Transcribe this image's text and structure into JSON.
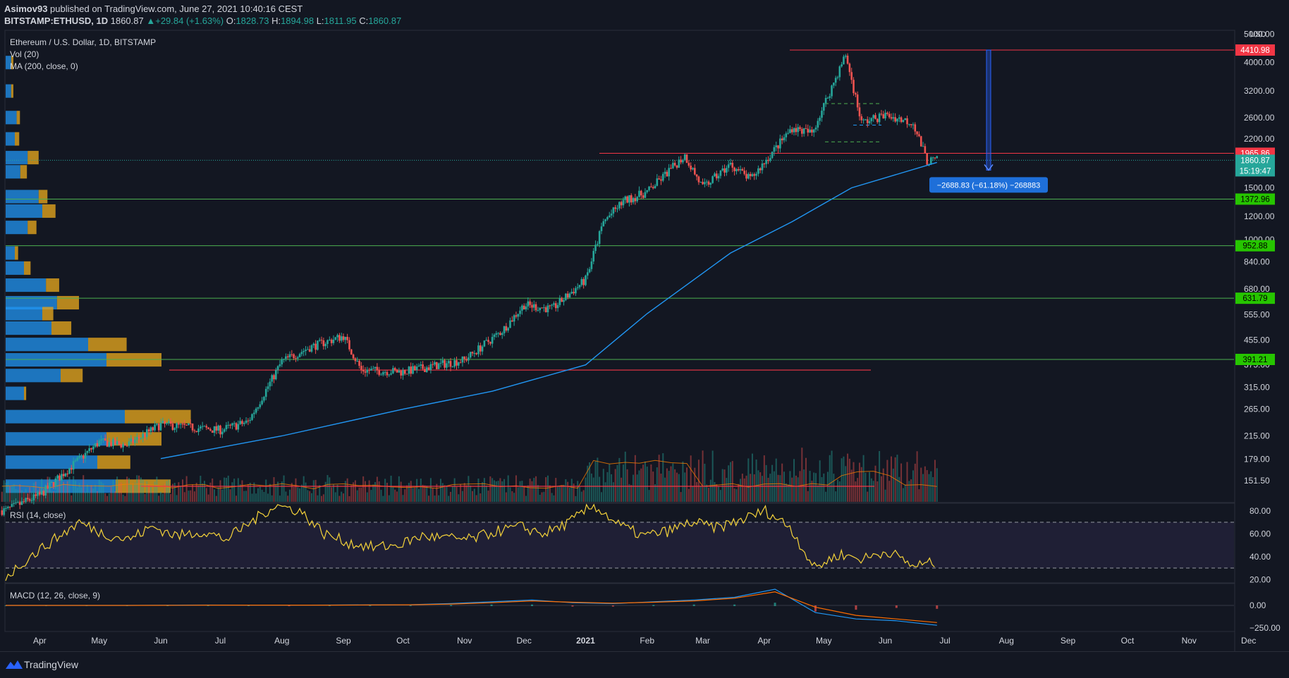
{
  "header": {
    "author": "Asimov93",
    "published": "published on TradingView.com, June 27, 2021 10:40:16 CEST",
    "symbol": "BITSTAMP:ETHUSD, 1D",
    "last": "1860.87",
    "change": "+29.84 (+1.63%)",
    "o_label": "O:",
    "o": "1828.73",
    "h_label": "H:",
    "h": "1894.98",
    "l_label": "L:",
    "l": "1811.95",
    "c_label": "C:",
    "c": "1860.87"
  },
  "legend": {
    "title": "Ethereum / U.S. Dollar, 1D, BITSTAMP",
    "vol": "Vol (20)",
    "ma": "MA (200, close, 0)",
    "rsi": "RSI (14, close)",
    "macd": "MACD (12, 26, close, 9)"
  },
  "colors": {
    "background": "#131722",
    "up": "#26a69a",
    "down": "#ef5350",
    "ma": "#2196f3",
    "rsi": "#f5d33a",
    "support": "#4caf50",
    "resistance": "#f23645",
    "measure": "#2962ff"
  },
  "footer": {
    "brand": "TradingView",
    "logo_icon": "tradingview-logo-icon"
  },
  "measure_label": "−2688.83 (−61.18%) −268883",
  "chart_data": {
    "type": "candlestick",
    "title": "Ethereum / U.S. Dollar, 1D, BITSTAMP",
    "y_scale": "log",
    "y_unit": "USD",
    "y_ticks": [
      "5000.00",
      "4000.00",
      "3200.00",
      "2600.00",
      "2200.00",
      "1500.00",
      "1200.00",
      "1000.00",
      "840.00",
      "680.00",
      "555.00",
      "455.00",
      "375.00",
      "315.00",
      "265.00",
      "215.00",
      "179.00",
      "151.50"
    ],
    "x_ticks": [
      "Apr",
      "May",
      "Jun",
      "Jul",
      "Aug",
      "Sep",
      "Oct",
      "Nov",
      "Dec",
      "2021",
      "Feb",
      "Mar",
      "Apr",
      "May",
      "Jun",
      "Jul",
      "Aug",
      "Sep",
      "Oct",
      "Nov",
      "Dec"
    ],
    "price_path": [
      {
        "x": "2020-03-15",
        "y": 120
      },
      {
        "x": "2020-04-01",
        "y": 135
      },
      {
        "x": "2020-04-15",
        "y": 165
      },
      {
        "x": "2020-05-01",
        "y": 205
      },
      {
        "x": "2020-05-15",
        "y": 200
      },
      {
        "x": "2020-06-01",
        "y": 235
      },
      {
        "x": "2020-06-15",
        "y": 230
      },
      {
        "x": "2020-07-01",
        "y": 225
      },
      {
        "x": "2020-07-15",
        "y": 240
      },
      {
        "x": "2020-08-01",
        "y": 385
      },
      {
        "x": "2020-08-15",
        "y": 430
      },
      {
        "x": "2020-09-01",
        "y": 470
      },
      {
        "x": "2020-09-10",
        "y": 360
      },
      {
        "x": "2020-10-01",
        "y": 355
      },
      {
        "x": "2020-10-15",
        "y": 370
      },
      {
        "x": "2020-11-01",
        "y": 390
      },
      {
        "x": "2020-11-20",
        "y": 490
      },
      {
        "x": "2020-12-01",
        "y": 600
      },
      {
        "x": "2020-12-15",
        "y": 580
      },
      {
        "x": "2021-01-01",
        "y": 730
      },
      {
        "x": "2021-01-10",
        "y": 1150
      },
      {
        "x": "2021-01-20",
        "y": 1350
      },
      {
        "x": "2021-02-01",
        "y": 1450
      },
      {
        "x": "2021-02-20",
        "y": 1930
      },
      {
        "x": "2021-03-01",
        "y": 1500
      },
      {
        "x": "2021-03-15",
        "y": 1800
      },
      {
        "x": "2021-03-25",
        "y": 1600
      },
      {
        "x": "2021-04-15",
        "y": 2400
      },
      {
        "x": "2021-04-25",
        "y": 2300
      },
      {
        "x": "2021-05-12",
        "y": 4250
      },
      {
        "x": "2021-05-20",
        "y": 2500
      },
      {
        "x": "2021-06-01",
        "y": 2650
      },
      {
        "x": "2021-06-15",
        "y": 2500
      },
      {
        "x": "2021-06-22",
        "y": 1850
      },
      {
        "x": "2021-06-27",
        "y": 1860.87
      }
    ],
    "ma200": [
      {
        "x": "2020-06-01",
        "y": 180
      },
      {
        "x": "2020-08-01",
        "y": 215
      },
      {
        "x": "2020-10-01",
        "y": 265
      },
      {
        "x": "2020-11-15",
        "y": 305
      },
      {
        "x": "2021-01-01",
        "y": 375
      },
      {
        "x": "2021-02-01",
        "y": 560
      },
      {
        "x": "2021-03-15",
        "y": 900
      },
      {
        "x": "2021-04-15",
        "y": 1150
      },
      {
        "x": "2021-05-15",
        "y": 1500
      },
      {
        "x": "2021-06-27",
        "y": 1830
      }
    ],
    "support_levels": [
      1372.96,
      952.88,
      631.79,
      391.21
    ],
    "resistance_levels": [
      4410.98,
      1965.86
    ],
    "other_red_levels": [
      360
    ],
    "range_box": {
      "top": 2900,
      "mid": 2450,
      "bottom": 2150
    },
    "price_labels": [
      {
        "value": "4410.98",
        "kind": "resistance"
      },
      {
        "value": "1965.86",
        "kind": "resistance"
      },
      {
        "value": "1860.87",
        "kind": "last"
      },
      {
        "value": "15:19:47",
        "kind": "countdown"
      },
      {
        "value": "1372.96",
        "kind": "support"
      },
      {
        "value": "952.88",
        "kind": "support"
      },
      {
        "value": "631.79",
        "kind": "support"
      },
      {
        "value": "391.21",
        "kind": "support"
      }
    ],
    "measurement": {
      "from": 4410.98,
      "to": 1722.15,
      "change": "−2688.83 (−61.18%) −268883"
    },
    "rsi": {
      "levels": [
        70,
        30
      ],
      "ticks": [
        "80.00",
        "60.00",
        "40.00",
        "20.00"
      ],
      "path": [
        22,
        40,
        55,
        70,
        60,
        55,
        66,
        58,
        62,
        55,
        70,
        85,
        80,
        60,
        52,
        48,
        50,
        58,
        56,
        55,
        62,
        66,
        60,
        70,
        85,
        68,
        58,
        62,
        70,
        65,
        72,
        80,
        66,
        30,
        42,
        38,
        45,
        32,
        35
      ]
    },
    "macd": {
      "ticks": [
        "0.00",
        "−250.00"
      ],
      "macd_path": [
        0,
        0,
        0,
        0,
        2,
        4,
        3,
        2,
        4,
        6,
        8,
        20,
        40,
        60,
        30,
        20,
        40,
        60,
        90,
        180,
        -80,
        -150,
        -170,
        -220
      ],
      "signal_path": [
        0,
        0,
        0,
        0,
        1,
        3,
        3,
        3,
        3,
        5,
        7,
        15,
        30,
        50,
        35,
        25,
        35,
        50,
        80,
        150,
        -20,
        -110,
        -150,
        -190
      ]
    },
    "volume_profile": [
      {
        "price": 4000,
        "up": 0.03,
        "down": 0.02
      },
      {
        "price": 3200,
        "up": 0.03,
        "down": 0.02
      },
      {
        "price": 2600,
        "up": 0.06,
        "down": 0.03
      },
      {
        "price": 2200,
        "up": 0.05,
        "down": 0.04
      },
      {
        "price": 1900,
        "up": 0.12,
        "down": 0.1
      },
      {
        "price": 1700,
        "up": 0.08,
        "down": 0.06
      },
      {
        "price": 1400,
        "up": 0.18,
        "down": 0.08
      },
      {
        "price": 1250,
        "up": 0.2,
        "down": 0.12
      },
      {
        "price": 1100,
        "up": 0.12,
        "down": 0.08
      },
      {
        "price": 900,
        "up": 0.05,
        "down": 0.03
      },
      {
        "price": 800,
        "up": 0.1,
        "down": 0.06
      },
      {
        "price": 700,
        "up": 0.22,
        "down": 0.12
      },
      {
        "price": 610,
        "up": 0.28,
        "down": 0.2
      },
      {
        "price": 560,
        "up": 0.2,
        "down": 0.1
      },
      {
        "price": 500,
        "up": 0.25,
        "down": 0.18
      },
      {
        "price": 440,
        "up": 0.45,
        "down": 0.35
      },
      {
        "price": 390,
        "up": 0.55,
        "down": 0.5
      },
      {
        "price": 345,
        "up": 0.3,
        "down": 0.2
      },
      {
        "price": 300,
        "up": 0.1,
        "down": 0.02
      },
      {
        "price": 250,
        "up": 0.65,
        "down": 0.6
      },
      {
        "price": 210,
        "up": 0.55,
        "down": 0.5
      },
      {
        "price": 175,
        "up": 0.5,
        "down": 0.3
      },
      {
        "price": 145,
        "up": 0.6,
        "down": 0.5
      }
    ]
  }
}
